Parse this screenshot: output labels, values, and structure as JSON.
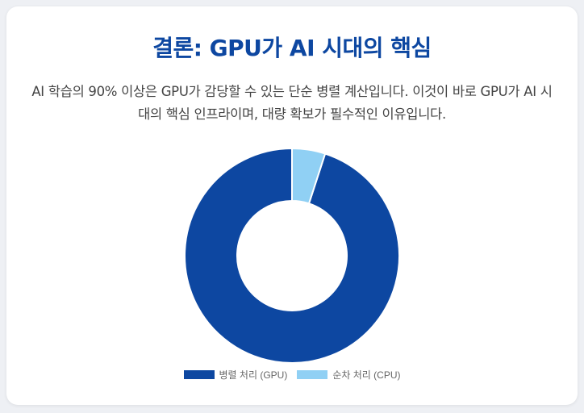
{
  "header": {
    "title": "결론: GPU가 AI 시대의 핵심",
    "description": "AI 학습의 90% 이상은 GPU가 감당할 수 있는 단순 병렬 계산입니다. 이것이 바로 GPU가 AI 시대의 핵심 인프라이며, 대량 확보가 필수적인 이유입니다."
  },
  "chart_data": {
    "type": "pie",
    "donut": true,
    "categories": [
      "병렬 처리 (GPU)",
      "순차 처리 (CPU)"
    ],
    "values": [
      95,
      5
    ],
    "colors": [
      "#0d47a1",
      "#90d0f4"
    ],
    "legend_position": "bottom"
  }
}
